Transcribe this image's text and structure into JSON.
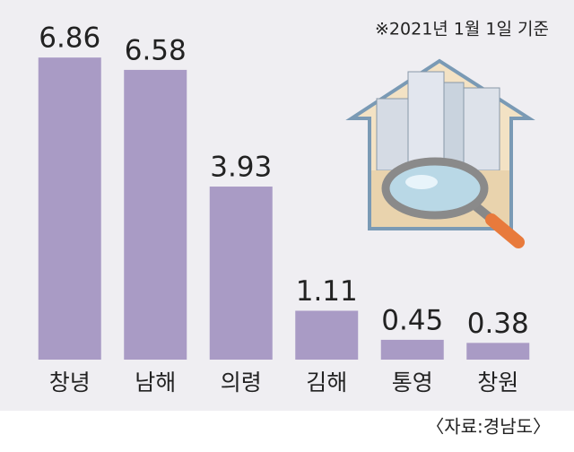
{
  "chart_data": {
    "type": "bar",
    "note": "※2021년 1월 1일 기준",
    "source": "〈자료:경남도〉",
    "categories": [
      "창녕",
      "남해",
      "의령",
      "김해",
      "통영",
      "창원"
    ],
    "values": [
      6.86,
      6.58,
      3.93,
      1.11,
      0.45,
      0.38
    ],
    "color": "#a99bc5"
  }
}
